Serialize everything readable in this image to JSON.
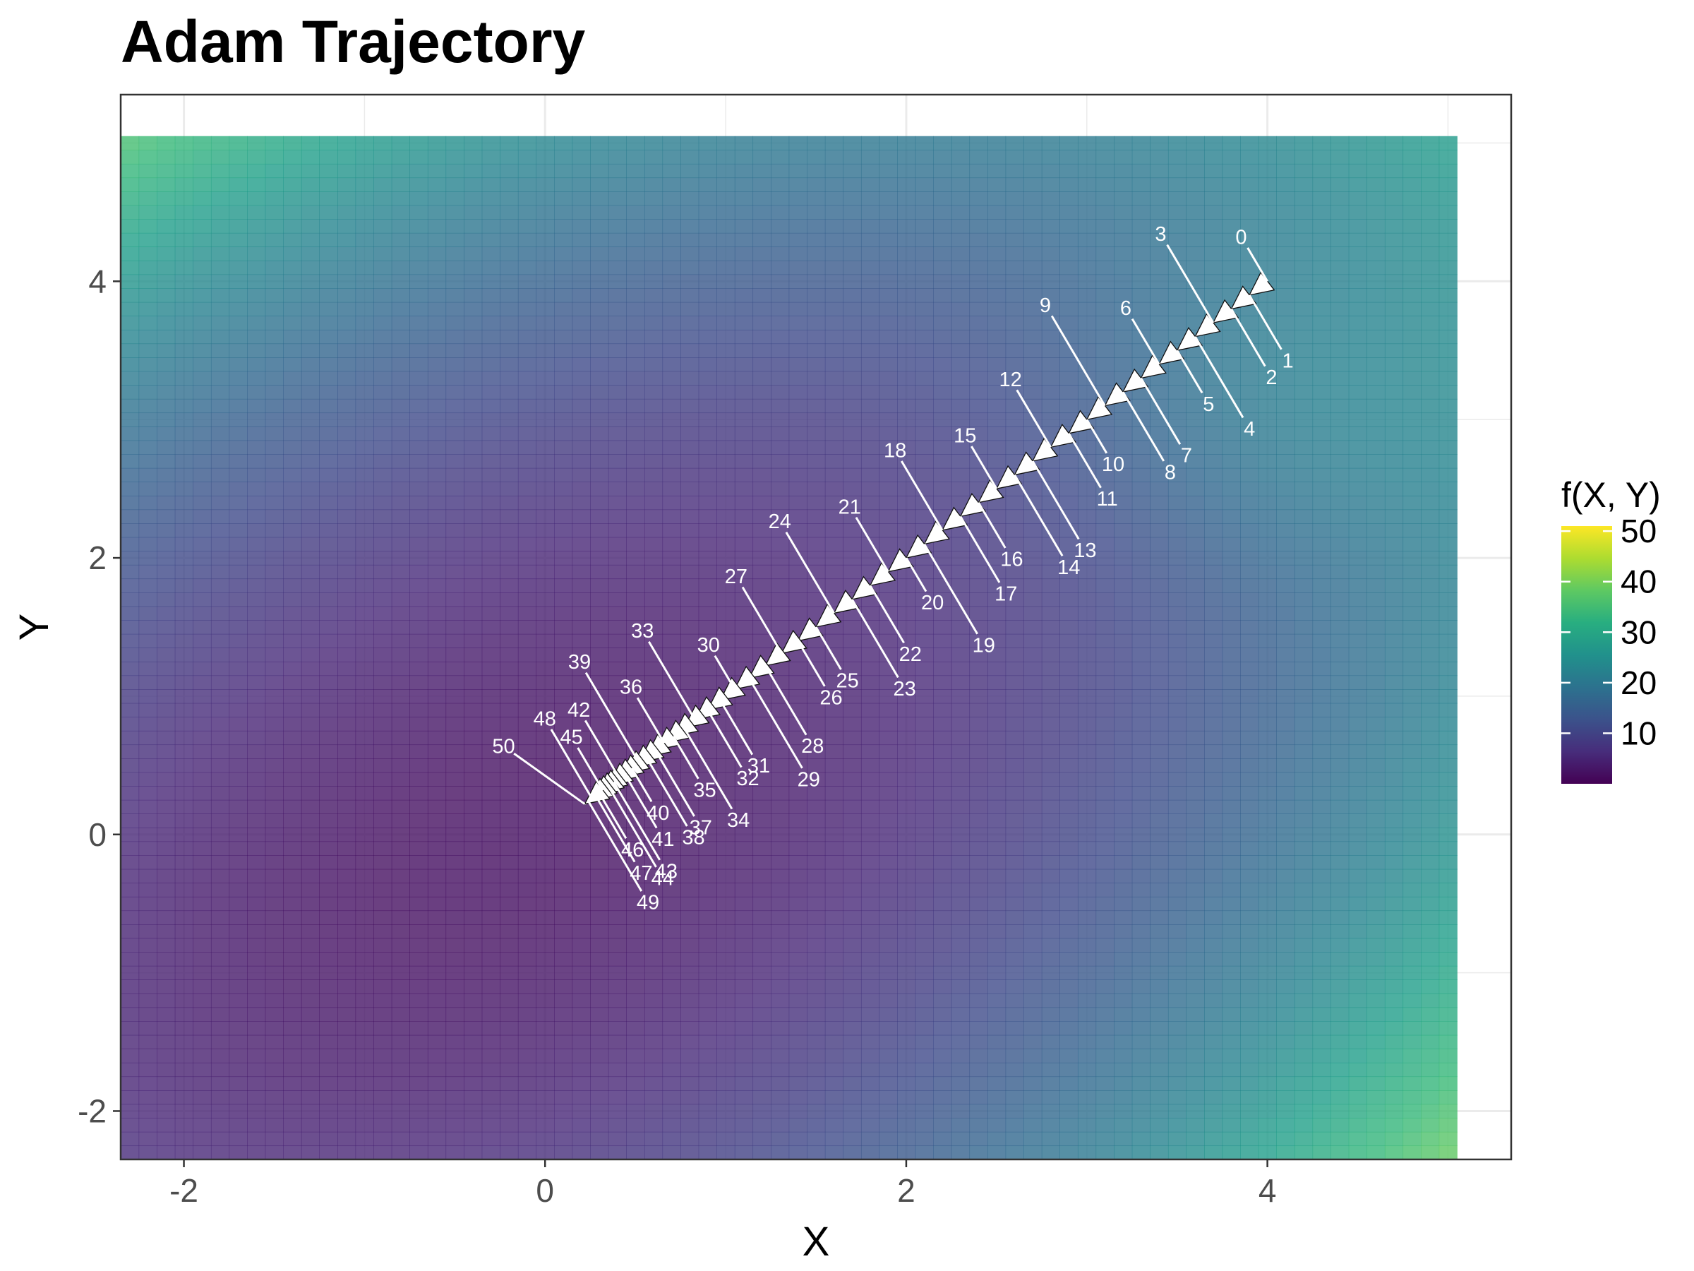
{
  "chart_data": {
    "type": "heatmap",
    "title": "Adam Trajectory",
    "xlabel": "X",
    "ylabel": "Y",
    "xlim": [
      -2.35,
      5.35
    ],
    "ylim": [
      -2.35,
      5.35
    ],
    "grid": true,
    "x_ticks": [
      -2,
      0,
      2,
      4
    ],
    "y_ticks": [
      -2,
      0,
      2,
      4
    ],
    "heatmap": {
      "x_range": [
        -2.35,
        5.05
      ],
      "y_range": [
        -2.35,
        5.05
      ],
      "function": "f(X, Y)",
      "opacity": 0.8
    },
    "legend": {
      "title": "f(X, Y)",
      "placement": "right",
      "scale": "viridis",
      "min": 0,
      "max": 51,
      "ticks": [
        10,
        20,
        30,
        40,
        50
      ]
    },
    "trajectory": {
      "name": "Adam",
      "steps": [
        0,
        1,
        2,
        3,
        4,
        5,
        6,
        7,
        8,
        9,
        10,
        11,
        12,
        13,
        14,
        15,
        16,
        17,
        18,
        19,
        20,
        21,
        22,
        23,
        24,
        25,
        26,
        27,
        28,
        29,
        30,
        31,
        32,
        33,
        34,
        35,
        36,
        37,
        38,
        39,
        40,
        41,
        42,
        43,
        44,
        45,
        46,
        47,
        48,
        49,
        50
      ],
      "x": [
        4.0,
        3.9,
        3.8,
        3.7,
        3.6,
        3.5,
        3.4,
        3.3,
        3.2,
        3.1,
        3.0,
        2.9,
        2.8,
        2.7,
        2.6,
        2.5,
        2.4,
        2.3,
        2.2,
        2.1,
        2.0,
        1.9,
        1.8,
        1.7,
        1.6,
        1.5,
        1.4,
        1.31,
        1.22,
        1.13,
        1.05,
        0.97,
        0.9,
        0.83,
        0.77,
        0.71,
        0.66,
        0.61,
        0.56,
        0.52,
        0.48,
        0.44,
        0.41,
        0.38,
        0.35,
        0.32,
        0.3,
        0.28,
        0.26,
        0.24,
        0.22
      ],
      "y": [
        4.0,
        3.9,
        3.8,
        3.7,
        3.6,
        3.5,
        3.4,
        3.3,
        3.2,
        3.1,
        3.0,
        2.9,
        2.8,
        2.7,
        2.6,
        2.5,
        2.4,
        2.3,
        2.2,
        2.1,
        2.0,
        1.9,
        1.8,
        1.7,
        1.6,
        1.5,
        1.4,
        1.31,
        1.22,
        1.13,
        1.05,
        0.97,
        0.9,
        0.83,
        0.77,
        0.71,
        0.66,
        0.61,
        0.56,
        0.52,
        0.48,
        0.44,
        0.41,
        0.38,
        0.35,
        0.32,
        0.3,
        0.28,
        0.26,
        0.24,
        0.22
      ]
    }
  }
}
